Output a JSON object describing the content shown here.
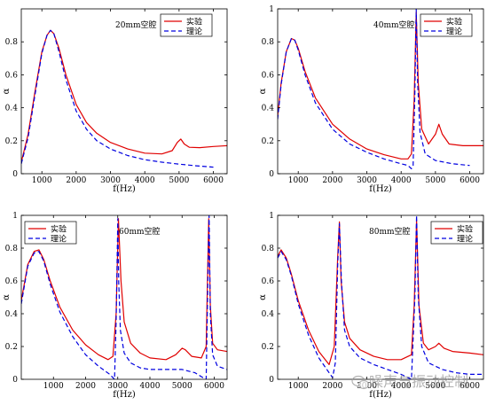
{
  "colors": {
    "exp": "#e00000",
    "theory": "#0000e0"
  },
  "watermark": "噪声与振动控制",
  "chart_data": [
    {
      "type": "line",
      "title": "20mm空腔",
      "xlabel": "f(Hz)",
      "ylabel": "α",
      "xlim": [
        400,
        6400
      ],
      "ylim": [
        0,
        1
      ],
      "xticks": [
        1000,
        2000,
        3000,
        4000,
        5000,
        6000
      ],
      "yticks": [
        0,
        0.2,
        0.4,
        0.6,
        0.8
      ],
      "legend": "top-right",
      "series": [
        {
          "name": "实验",
          "style": "solid",
          "color": "#e00000",
          "x": [
            400,
            600,
            800,
            1000,
            1150,
            1250,
            1350,
            1500,
            1700,
            2000,
            2300,
            2600,
            3000,
            3500,
            4000,
            4500,
            4800,
            4950,
            5050,
            5150,
            5300,
            5600,
            6000,
            6400
          ],
          "y": [
            0.07,
            0.24,
            0.5,
            0.74,
            0.84,
            0.87,
            0.85,
            0.76,
            0.6,
            0.42,
            0.31,
            0.245,
            0.19,
            0.15,
            0.125,
            0.12,
            0.14,
            0.19,
            0.21,
            0.18,
            0.16,
            0.158,
            0.165,
            0.17
          ]
        },
        {
          "name": "理论",
          "style": "dashed",
          "color": "#0000e0",
          "x": [
            400,
            600,
            800,
            1000,
            1150,
            1250,
            1350,
            1500,
            1700,
            2000,
            2300,
            2600,
            3000,
            3500,
            4000,
            4500,
            5000,
            5500,
            6000
          ],
          "y": [
            0.06,
            0.22,
            0.48,
            0.73,
            0.84,
            0.87,
            0.85,
            0.74,
            0.57,
            0.38,
            0.27,
            0.2,
            0.15,
            0.11,
            0.085,
            0.07,
            0.058,
            0.048,
            0.04
          ]
        }
      ]
    },
    {
      "type": "line",
      "title": "40mm空腔",
      "xlabel": "f(Hz)",
      "ylabel": "α",
      "xlim": [
        400,
        6400
      ],
      "ylim": [
        0,
        1
      ],
      "xticks": [
        1000,
        2000,
        3000,
        4000,
        5000,
        6000
      ],
      "yticks": [
        0,
        0.2,
        0.4,
        0.6,
        0.8,
        1
      ],
      "legend": "top-right",
      "series": [
        {
          "name": "实验",
          "style": "solid",
          "color": "#e00000",
          "x": [
            400,
            500,
            650,
            800,
            900,
            1000,
            1200,
            1500,
            2000,
            2500,
            3000,
            3500,
            4000,
            4200,
            4300,
            4380,
            4440,
            4500,
            4600,
            4800,
            5000,
            5100,
            5200,
            5400,
            5800,
            6400
          ],
          "y": [
            0.35,
            0.55,
            0.74,
            0.82,
            0.81,
            0.76,
            0.62,
            0.46,
            0.3,
            0.21,
            0.15,
            0.115,
            0.09,
            0.09,
            0.12,
            0.45,
            0.98,
            0.55,
            0.27,
            0.18,
            0.24,
            0.3,
            0.24,
            0.18,
            0.17,
            0.17
          ]
        },
        {
          "name": "理论",
          "style": "dashed",
          "color": "#0000e0",
          "x": [
            400,
            500,
            650,
            800,
            900,
            1000,
            1200,
            1500,
            2000,
            2500,
            3000,
            3500,
            4000,
            4200,
            4300,
            4350,
            4400,
            4440,
            4480,
            4550,
            4700,
            5000,
            5500,
            6000
          ],
          "y": [
            0.33,
            0.54,
            0.74,
            0.82,
            0.81,
            0.75,
            0.6,
            0.43,
            0.27,
            0.18,
            0.13,
            0.09,
            0.06,
            0.05,
            0.03,
            0.05,
            0.5,
            1.0,
            0.55,
            0.25,
            0.12,
            0.08,
            0.06,
            0.05
          ]
        }
      ]
    },
    {
      "type": "line",
      "title": "60mm空腔",
      "xlabel": "f(Hz)",
      "ylabel": "α",
      "xlim": [
        0,
        6400
      ],
      "ylim": [
        0,
        1
      ],
      "xticks": [
        1000,
        2000,
        3000,
        4000,
        5000,
        6000
      ],
      "yticks": [
        0,
        0.2,
        0.4,
        0.6,
        0.8,
        1
      ],
      "legend": "top-left",
      "series": [
        {
          "name": "实验",
          "style": "solid",
          "color": "#e00000",
          "x": [
            0,
            200,
            400,
            550,
            700,
            900,
            1200,
            1600,
            2000,
            2400,
            2700,
            2850,
            2950,
            3020,
            3100,
            3200,
            3400,
            3700,
            4000,
            4500,
            4800,
            5000,
            5100,
            5300,
            5600,
            5750,
            5830,
            5880,
            5950,
            6100,
            6400
          ],
          "y": [
            0.48,
            0.7,
            0.78,
            0.79,
            0.73,
            0.6,
            0.44,
            0.3,
            0.21,
            0.15,
            0.12,
            0.14,
            0.4,
            0.98,
            0.6,
            0.35,
            0.22,
            0.16,
            0.13,
            0.12,
            0.15,
            0.19,
            0.18,
            0.14,
            0.13,
            0.2,
            0.98,
            0.45,
            0.22,
            0.18,
            0.17
          ]
        },
        {
          "name": "理论",
          "style": "dashed",
          "color": "#0000e0",
          "x": [
            0,
            200,
            400,
            550,
            700,
            900,
            1200,
            1600,
            2000,
            2400,
            2750,
            2900,
            2950,
            3000,
            3030,
            3080,
            3200,
            3400,
            3700,
            4000,
            4500,
            5000,
            5400,
            5650,
            5750,
            5800,
            5840,
            5880,
            5950,
            6100,
            6400
          ],
          "y": [
            0.46,
            0.69,
            0.77,
            0.78,
            0.72,
            0.58,
            0.41,
            0.26,
            0.15,
            0.08,
            0.03,
            0.0,
            0.35,
            0.98,
            0.6,
            0.3,
            0.16,
            0.1,
            0.07,
            0.06,
            0.06,
            0.06,
            0.04,
            0.01,
            0.0,
            0.6,
            1.0,
            0.4,
            0.15,
            0.08,
            0.06
          ]
        }
      ]
    },
    {
      "type": "line",
      "title": "80mm空腔",
      "xlabel": "f(Hz)",
      "ylabel": "α",
      "xlim": [
        400,
        6400
      ],
      "ylim": [
        0,
        1
      ],
      "xticks": [
        1000,
        2000,
        3000,
        4000,
        5000,
        6000
      ],
      "yticks": [
        0,
        0.2,
        0.4,
        0.6,
        0.8,
        1
      ],
      "legend": "top-right",
      "series": [
        {
          "name": "实验",
          "style": "solid",
          "color": "#e00000",
          "x": [
            400,
            500,
            650,
            800,
            1000,
            1300,
            1600,
            1900,
            2050,
            2150,
            2200,
            2250,
            2350,
            2500,
            2800,
            3200,
            3600,
            4000,
            4300,
            4380,
            4450,
            4520,
            4650,
            4800,
            5000,
            5100,
            5250,
            5500,
            6000,
            6400
          ],
          "y": [
            0.75,
            0.79,
            0.74,
            0.64,
            0.48,
            0.3,
            0.17,
            0.09,
            0.2,
            0.75,
            0.96,
            0.6,
            0.35,
            0.25,
            0.18,
            0.14,
            0.12,
            0.12,
            0.15,
            0.45,
            0.97,
            0.45,
            0.22,
            0.18,
            0.2,
            0.22,
            0.19,
            0.17,
            0.16,
            0.15
          ]
        },
        {
          "name": "理论",
          "style": "dashed",
          "color": "#0000e0",
          "x": [
            400,
            500,
            650,
            800,
            1000,
            1300,
            1600,
            1900,
            2000,
            2080,
            2150,
            2200,
            2260,
            2350,
            2500,
            2800,
            3200,
            3600,
            4000,
            4300,
            4400,
            4450,
            4500,
            4600,
            4800,
            5200,
            5600,
            6000,
            6400
          ],
          "y": [
            0.74,
            0.78,
            0.73,
            0.63,
            0.46,
            0.27,
            0.13,
            0.04,
            0.01,
            0.1,
            0.7,
            0.95,
            0.6,
            0.3,
            0.2,
            0.13,
            0.09,
            0.06,
            0.03,
            0.0,
            0.5,
            1.0,
            0.5,
            0.2,
            0.1,
            0.06,
            0.04,
            0.03,
            0.03
          ]
        }
      ]
    }
  ]
}
